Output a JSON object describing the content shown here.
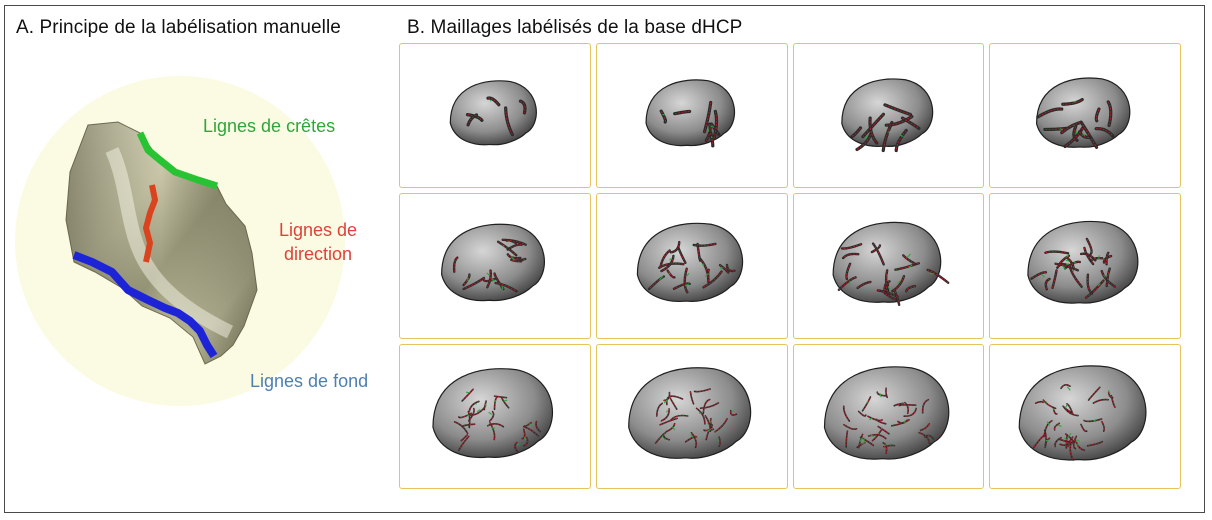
{
  "panel_a": {
    "title": "A. Principe de la labélisation manuelle",
    "labels": {
      "ridges": "Lignes de crêtes",
      "direction": "Lignes de\ndirection",
      "fundus": "Lignes de fond"
    }
  },
  "panel_b": {
    "title": "B. Maillages labélisés de la base dHCP",
    "rows": 3,
    "cols": 4
  },
  "colors": {
    "ridges": "#2ea63a",
    "direction": "#e0413a",
    "fundus": "#4f7fb0",
    "cell_border": "#e6c35c",
    "background_disc": "#fbfbe3",
    "frame": "#4a4a4a"
  }
}
